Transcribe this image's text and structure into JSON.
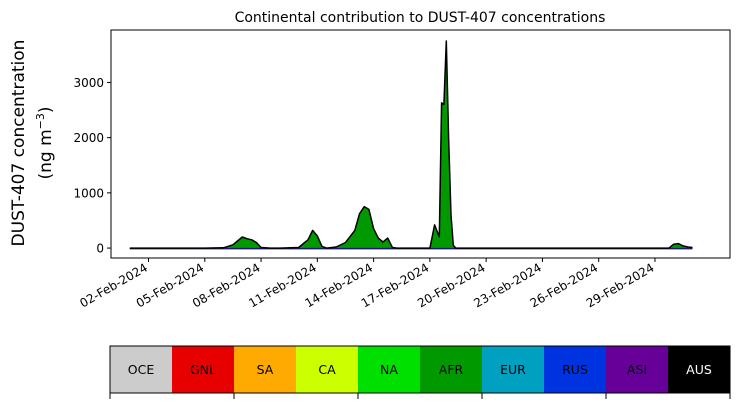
{
  "chart_data": {
    "type": "area",
    "title": "Continental contribution to DUST-407 concentrations",
    "ylabel_line1": "DUST-407 concentration",
    "ylabel_line2": "(ng m",
    "ylabel_sup": "−3",
    "ylabel_close": ")",
    "xlabel": "",
    "xlim": [
      "2024-01-31",
      "2024-03-04"
    ],
    "ylim": [
      -180,
      3950
    ],
    "yticks": [
      0,
      1000,
      2000,
      3000
    ],
    "xtick_labels": [
      "02-Feb-2024",
      "05-Feb-2024",
      "08-Feb-2024",
      "11-Feb-2024",
      "14-Feb-2024",
      "17-Feb-2024",
      "20-Feb-2024",
      "23-Feb-2024",
      "26-Feb-2024",
      "29-Feb-2024"
    ],
    "xtick_dates": [
      "2024-02-02",
      "2024-02-05",
      "2024-02-08",
      "2024-02-11",
      "2024-02-14",
      "2024-02-17",
      "2024-02-20",
      "2024-02-23",
      "2024-02-26",
      "2024-02-29"
    ],
    "grid": false,
    "dominant_series": "AFR",
    "total_series": {
      "x": [
        "2024-02-01",
        "2024-02-02",
        "2024-02-03",
        "2024-02-04",
        "2024-02-05",
        "2024-02-06",
        "2024-02-06 12:00",
        "2024-02-07",
        "2024-02-07 06:00",
        "2024-02-07 12:00",
        "2024-02-07 18:00",
        "2024-02-08",
        "2024-02-08 12:00",
        "2024-02-09",
        "2024-02-10",
        "2024-02-10 12:00",
        "2024-02-10 18:00",
        "2024-02-11",
        "2024-02-11 06:00",
        "2024-02-11 12:00",
        "2024-02-12",
        "2024-02-12 12:00",
        "2024-02-13",
        "2024-02-13 06:00",
        "2024-02-13 12:00",
        "2024-02-13 18:00",
        "2024-02-14",
        "2024-02-14 06:00",
        "2024-02-14 12:00",
        "2024-02-14 18:00",
        "2024-02-15",
        "2024-02-15 06:00",
        "2024-02-15 12:00",
        "2024-02-15 18:00",
        "2024-02-16",
        "2024-02-17",
        "2024-02-17 06:00",
        "2024-02-17 12:00",
        "2024-02-17 15:00",
        "2024-02-17 18:00",
        "2024-02-17 21:00",
        "2024-02-18",
        "2024-02-18 03:00",
        "2024-02-18 06:00",
        "2024-02-18 09:00",
        "2024-02-18 12:00",
        "2024-02-18 15:00",
        "2024-02-18 18:00",
        "2024-02-18 21:00",
        "2024-02-19",
        "2024-02-20",
        "2024-02-21",
        "2024-02-22",
        "2024-02-23",
        "2024-02-24",
        "2024-02-25",
        "2024-02-26",
        "2024-02-27",
        "2024-02-28",
        "2024-02-29",
        "2024-02-29 12:00",
        "2024-02-29 18:00",
        "2024-03-01",
        "2024-03-01 06:00",
        "2024-03-01 12:00",
        "2024-03-01 18:00",
        "2024-03-02"
      ],
      "values": [
        0,
        0,
        0,
        0,
        0,
        5,
        60,
        200,
        170,
        150,
        100,
        10,
        0,
        0,
        10,
        150,
        320,
        220,
        30,
        0,
        20,
        100,
        320,
        620,
        750,
        700,
        350,
        180,
        110,
        180,
        10,
        0,
        0,
        0,
        0,
        0,
        420,
        200,
        2630,
        2600,
        3750,
        2000,
        600,
        50,
        0,
        0,
        0,
        0,
        0,
        0,
        0,
        0,
        0,
        0,
        0,
        0,
        0,
        0,
        0,
        0,
        0,
        0,
        70,
        80,
        40,
        20,
        10
      ]
    },
    "legend": {
      "entries": [
        {
          "label": "OCE",
          "color": "#cccccc",
          "text_color": "#000000"
        },
        {
          "label": "GNL",
          "color": "#e60000",
          "text_color": "#000000"
        },
        {
          "label": "SA",
          "color": "#ffaa00",
          "text_color": "#000000"
        },
        {
          "label": "CA",
          "color": "#ccff00",
          "text_color": "#000000"
        },
        {
          "label": "NA",
          "color": "#00e000",
          "text_color": "#000000"
        },
        {
          "label": "AFR",
          "color": "#009900",
          "text_color": "#000000"
        },
        {
          "label": "EUR",
          "color": "#00a0c0",
          "text_color": "#000000"
        },
        {
          "label": "RUS",
          "color": "#0033e0",
          "text_color": "#000000"
        },
        {
          "label": "ASI",
          "color": "#660099",
          "text_color": "#000000"
        },
        {
          "label": "AUS",
          "color": "#000000",
          "text_color": "#ffffff"
        }
      ]
    }
  }
}
